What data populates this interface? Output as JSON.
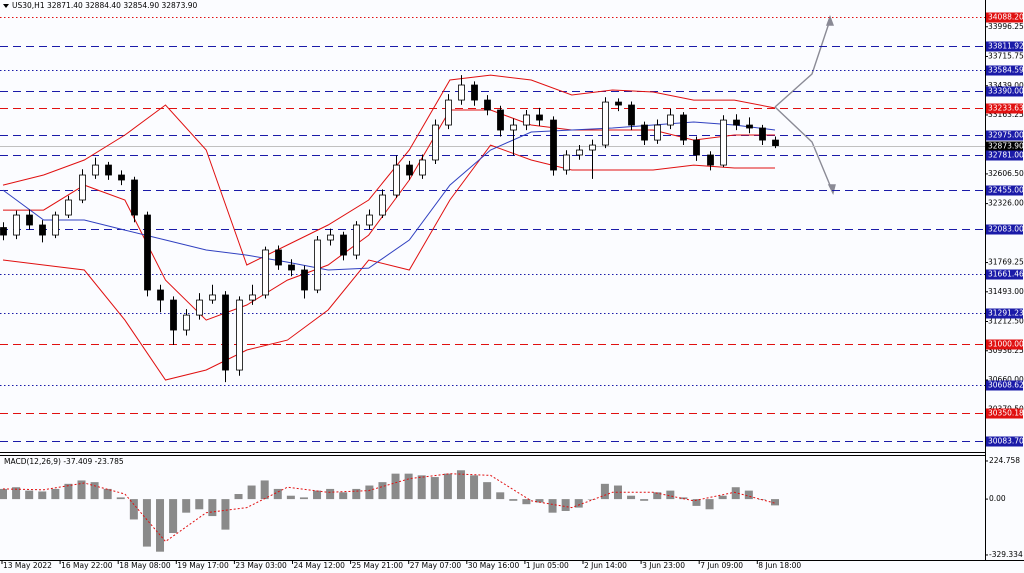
{
  "chart_data": {
    "type": "candlestick",
    "title": "US30,H1  32871.40 32884.40 32854.90 32873.90",
    "x_labels": [
      "13 May 2022",
      "16 May 22:00",
      "18 May 08:00",
      "19 May 17:00",
      "23 May 03:00",
      "24 May 12:00",
      "25 May 21:00",
      "27 May 07:00",
      "30 May 16:00",
      "1 Jun 05:00",
      "2 Jun 14:00",
      "3 Jun 23:00",
      "7 Jun 09:00",
      "8 Jun 18:00"
    ],
    "open": [
      32100,
      32029,
      32218,
      32124,
      32029,
      32218,
      32360,
      32596,
      32690,
      32596,
      32549,
      32218,
      31510,
      31415,
      31132,
      31273,
      31415,
      31463,
      30754,
      31415,
      31463,
      31888,
      31746,
      31699,
      31510,
      31982,
      32029,
      31840,
      32124,
      32218,
      32407,
      32690,
      32596,
      32738,
      33068,
      33304,
      33446,
      33304,
      33210,
      33021,
      33068,
      33163,
      33115,
      32643,
      32785,
      32832,
      32879,
      33285,
      33257,
      33068,
      32926,
      33068,
      33163,
      32926,
      32785,
      32690,
      33115,
      33068,
      33040,
      32926
    ],
    "high": [
      32150,
      32260,
      32270,
      32170,
      32250,
      32400,
      32650,
      32760,
      32720,
      32640,
      32580,
      32250,
      31560,
      31450,
      31330,
      31480,
      31560,
      31500,
      31450,
      31560,
      31920,
      31930,
      31800,
      31740,
      32020,
      32090,
      32060,
      32160,
      32270,
      32460,
      32780,
      32730,
      32790,
      33120,
      33360,
      33540,
      33480,
      33350,
      33250,
      33130,
      33210,
      33230,
      33150,
      32830,
      32880,
      32930,
      33330,
      33320,
      33290,
      33100,
      33120,
      33220,
      33190,
      32960,
      32820,
      33160,
      33170,
      33140,
      33070,
      32960
    ],
    "low": [
      31980,
      31990,
      32080,
      31960,
      32000,
      32190,
      32330,
      32560,
      32550,
      32500,
      32150,
      31450,
      31300,
      30990,
      31080,
      31230,
      31380,
      30640,
      30700,
      31370,
      31430,
      31700,
      31640,
      31430,
      31480,
      31930,
      31790,
      31800,
      32080,
      32190,
      32380,
      32550,
      32560,
      32700,
      33030,
      33260,
      33250,
      33160,
      32960,
      32780,
      33020,
      33060,
      32590,
      32600,
      32740,
      32560,
      32850,
      33200,
      33020,
      32880,
      32890,
      33030,
      32880,
      32730,
      32640,
      32670,
      33020,
      32990,
      32880,
      32850
    ],
    "close": [
      32029,
      32218,
      32124,
      32029,
      32218,
      32360,
      32596,
      32690,
      32596,
      32549,
      32218,
      31510,
      31415,
      31132,
      31273,
      31415,
      31463,
      30754,
      31415,
      31463,
      31888,
      31746,
      31699,
      31510,
      31982,
      32029,
      31840,
      32124,
      32218,
      32407,
      32690,
      32596,
      32738,
      33068,
      33304,
      33446,
      33304,
      33210,
      33021,
      33068,
      33163,
      33115,
      32643,
      32785,
      32832,
      32879,
      33285,
      33257,
      33068,
      32926,
      33068,
      33163,
      32926,
      32785,
      32690,
      33115,
      33068,
      33040,
      32926,
      32874
    ],
    "up_color": "#ffffff",
    "down_color": "#000000",
    "ylim": [
      29980,
      34249
    ],
    "yticks": [
      {
        "value": 33996.25,
        "label": "33996.25"
      },
      {
        "value": 33715.75,
        "label": "33715.75"
      },
      {
        "value": 33439,
        "label": "33439.00"
      },
      {
        "value": 33163.25,
        "label": "33163.25"
      },
      {
        "value": 32606.5,
        "label": "32606.50"
      },
      {
        "value": 32326,
        "label": "32326.00"
      },
      {
        "value": 31769.25,
        "label": "31769.25"
      },
      {
        "value": 31493,
        "label": "31493.00"
      },
      {
        "value": 31212.5,
        "label": "31212.50"
      },
      {
        "value": 30936.25,
        "label": "30936.25"
      },
      {
        "value": 30660,
        "label": "30660.00"
      },
      {
        "value": 30379.5,
        "label": "30379.50"
      }
    ],
    "levels": [
      {
        "value": 34088.2,
        "label": "34088.20",
        "color": "#e01010",
        "style": "dotted"
      },
      {
        "value": 33811.92,
        "label": "33811.92",
        "color": "#1a1aa8",
        "style": "dashed"
      },
      {
        "value": 33584.59,
        "label": "33584.59",
        "color": "#1a1aa8",
        "style": "dotted"
      },
      {
        "value": 33390,
        "label": "33390.00",
        "color": "#1a1aa8",
        "style": "dashed"
      },
      {
        "value": 33233.63,
        "label": "33233.63",
        "color": "#e01010",
        "style": "dashed"
      },
      {
        "value": 32975,
        "label": "32975.00",
        "color": "#1a1aa8",
        "style": "dashed"
      },
      {
        "value": 32873.9,
        "label": "32873.90",
        "color": "#000000",
        "style": "solid"
      },
      {
        "value": 32781,
        "label": "32781.00",
        "color": "#1a1aa8",
        "style": "dashed"
      },
      {
        "value": 32455,
        "label": "32455.00",
        "color": "#1a1aa8",
        "style": "dashed"
      },
      {
        "value": 32083,
        "label": "32083.00",
        "color": "#1a1aa8",
        "style": "dashed"
      },
      {
        "value": 31661.46,
        "label": "31661.46",
        "color": "#1a1aa8",
        "style": "dotted"
      },
      {
        "value": 31291.23,
        "label": "31291.23",
        "color": "#1a1aa8",
        "style": "dotted"
      },
      {
        "value": 31000,
        "label": "31000.00",
        "color": "#e01010",
        "style": "dashed"
      },
      {
        "value": 30608.62,
        "label": "30608.62",
        "color": "#1a1aa8",
        "style": "dotted"
      },
      {
        "value": 30350.18,
        "label": "30350.18",
        "color": "#e01010",
        "style": "dashed"
      },
      {
        "value": 30083.7,
        "label": "30083.70",
        "color": "#1a1aa8",
        "style": "dashed"
      }
    ],
    "overlays": [
      {
        "color": "#e01010",
        "values": [
          32501,
          32596,
          32738,
          32974,
          33257,
          32832,
          31746,
          31935,
          32124,
          32360,
          32832,
          33493,
          33540,
          33493,
          33352,
          33399,
          33380,
          33304,
          33304,
          33229
        ]
      },
      {
        "color": "#e01010",
        "values": [
          31793,
          31746,
          31699,
          31226,
          30660,
          30754,
          30943,
          31037,
          31321,
          31793,
          31699,
          32360,
          32879,
          32738,
          32643,
          32643,
          32643,
          32690,
          32662,
          32662
        ]
      },
      {
        "color": "#e01010",
        "values": [
          32265,
          32265,
          32501,
          32360,
          31604,
          31226,
          31368,
          31604,
          31746,
          32029,
          32549,
          33210,
          33210,
          33068,
          33021,
          33021,
          33021,
          32926,
          32974,
          32974
        ]
      },
      {
        "color": "#3040c0",
        "values": [
          32454,
          32171,
          32171,
          32076,
          31982,
          31888,
          31840,
          31774,
          31699,
          31717,
          31982,
          32501,
          32832,
          33002,
          33021,
          33040,
          33068,
          33097,
          33068,
          33021
        ]
      }
    ],
    "macd": {
      "title": "MACD(12,26,9) -37.409 -23.785",
      "histogram": [
        60,
        70,
        50,
        45,
        60,
        90,
        110,
        100,
        60,
        10,
        -120,
        -280,
        -310,
        -200,
        -80,
        -60,
        -100,
        -180,
        30,
        80,
        110,
        60,
        20,
        10,
        50,
        60,
        40,
        60,
        80,
        100,
        150,
        150,
        140,
        130,
        150,
        170,
        140,
        100,
        40,
        -10,
        -30,
        -20,
        -80,
        -70,
        -50,
        0,
        90,
        80,
        20,
        -10,
        40,
        50,
        10,
        -40,
        -60,
        20,
        70,
        50,
        0,
        -37
      ],
      "signal": [
        60,
        55,
        95,
        30,
        -250,
        -80,
        -50,
        70,
        40,
        50,
        120,
        150,
        140,
        -10,
        -50,
        40,
        40,
        -10,
        40,
        -24
      ],
      "hist_color": "#8a8a8a",
      "signal_color": "#e01010",
      "ylim": [
        -359,
        260
      ],
      "yticks": [
        224.758,
        {
          "value": 0,
          "label": "0.00"
        },
        -329.334
      ]
    }
  }
}
